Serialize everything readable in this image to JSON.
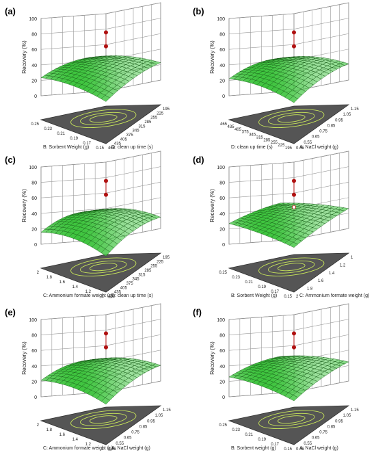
{
  "figure": {
    "accent_surface": "#3ec43e",
    "floor_color": "#555555",
    "contour_color": "#c8e65a",
    "point_color": "#b01010"
  },
  "chart_data": [
    {
      "panel": "(a)",
      "type": "surface",
      "zlabel": "Recovery (%)",
      "zticks": [
        "0",
        "20",
        "40",
        "60",
        "80",
        "100"
      ],
      "x": {
        "label": "B: Sorbent Weight (g)",
        "ticks": [
          "0.25",
          "0.23",
          "0.21",
          "0.19",
          "0.17",
          "0.15"
        ]
      },
      "y": {
        "label": "D: clean up time (s)",
        "ticks": [
          "465",
          "435",
          "405",
          "375",
          "345",
          "315",
          "285",
          "255",
          "225",
          "195"
        ]
      },
      "z_range": [
        45,
        58
      ],
      "design_points": [
        82,
        64
      ]
    },
    {
      "panel": "(b)",
      "type": "surface",
      "zlabel": "Recovery (%)",
      "zticks": [
        "0",
        "20",
        "40",
        "60",
        "80",
        "100"
      ],
      "x": {
        "label": "D: clean up time (s)",
        "ticks": [
          "465",
          "435",
          "405",
          "375",
          "345",
          "315",
          "285",
          "255",
          "225",
          "195"
        ]
      },
      "y": {
        "label": "A: NaCl weight (g)",
        "ticks": [
          "0.45",
          "0.55",
          "0.65",
          "0.75",
          "0.85",
          "0.95",
          "1.05",
          "1.15"
        ]
      },
      "z_range": [
        43,
        58
      ],
      "design_points": [
        82,
        64
      ]
    },
    {
      "panel": "(c)",
      "type": "surface",
      "zlabel": "Recovery (%)",
      "zticks": [
        "0",
        "20",
        "40",
        "60",
        "80",
        "100"
      ],
      "x": {
        "label": "C: Ammonium formate weight (g)",
        "ticks": [
          "2",
          "1.8",
          "1.6",
          "1.4",
          "1.2",
          "1"
        ]
      },
      "y": {
        "label": "D: clean up time (s)",
        "ticks": [
          "465",
          "435",
          "405",
          "375",
          "345",
          "315",
          "285",
          "255",
          "225",
          "195"
        ]
      },
      "z_range": [
        35,
        55
      ],
      "design_points": [
        82,
        64
      ]
    },
    {
      "panel": "(d)",
      "type": "surface",
      "zlabel": "Recovery (%)",
      "zticks": [
        "0",
        "20",
        "40",
        "60",
        "80",
        "100"
      ],
      "x": {
        "label": "B: Sorbent Weight (g)",
        "ticks": [
          "0.25",
          "0.23",
          "0.21",
          "0.19",
          "0.17",
          "0.15"
        ]
      },
      "y": {
        "label": "C: Ammonium formate weight (g)",
        "ticks": [
          "2",
          "1.8",
          "1.6",
          "1.4",
          "1.2",
          "1"
        ]
      },
      "z_range": [
        50,
        56
      ],
      "design_points": [
        82,
        64,
        48
      ]
    },
    {
      "panel": "(e)",
      "type": "surface",
      "zlabel": "Recovery (%)",
      "zticks": [
        "0",
        "20",
        "40",
        "60",
        "80",
        "100"
      ],
      "x": {
        "label": "C: Ammonium formate weight (g)",
        "ticks": [
          "2",
          "1.8",
          "1.6",
          "1.4",
          "1.2",
          "1"
        ]
      },
      "y": {
        "label": "A: NaCl weight (g)",
        "ticks": [
          "0.45",
          "0.55",
          "0.65",
          "0.75",
          "0.85",
          "0.95",
          "1.05",
          "1.15"
        ]
      },
      "z_range": [
        42,
        58
      ],
      "design_points": [
        82,
        64
      ]
    },
    {
      "panel": "(f)",
      "type": "surface",
      "zlabel": "Recovery (%)",
      "zticks": [
        "0",
        "20",
        "40",
        "60",
        "80",
        "100"
      ],
      "x": {
        "label": "B: Sorbent weight (g)",
        "ticks": [
          "0.25",
          "0.23",
          "0.21",
          "0.19",
          "0.17",
          "0.15"
        ]
      },
      "y": {
        "label": "A: NaCl weight (g)",
        "ticks": [
          "0.45",
          "0.55",
          "0.65",
          "0.75",
          "0.85",
          "0.95",
          "1.05",
          "1.15"
        ]
      },
      "z_range": [
        48,
        58
      ],
      "design_points": [
        82,
        64
      ]
    }
  ]
}
